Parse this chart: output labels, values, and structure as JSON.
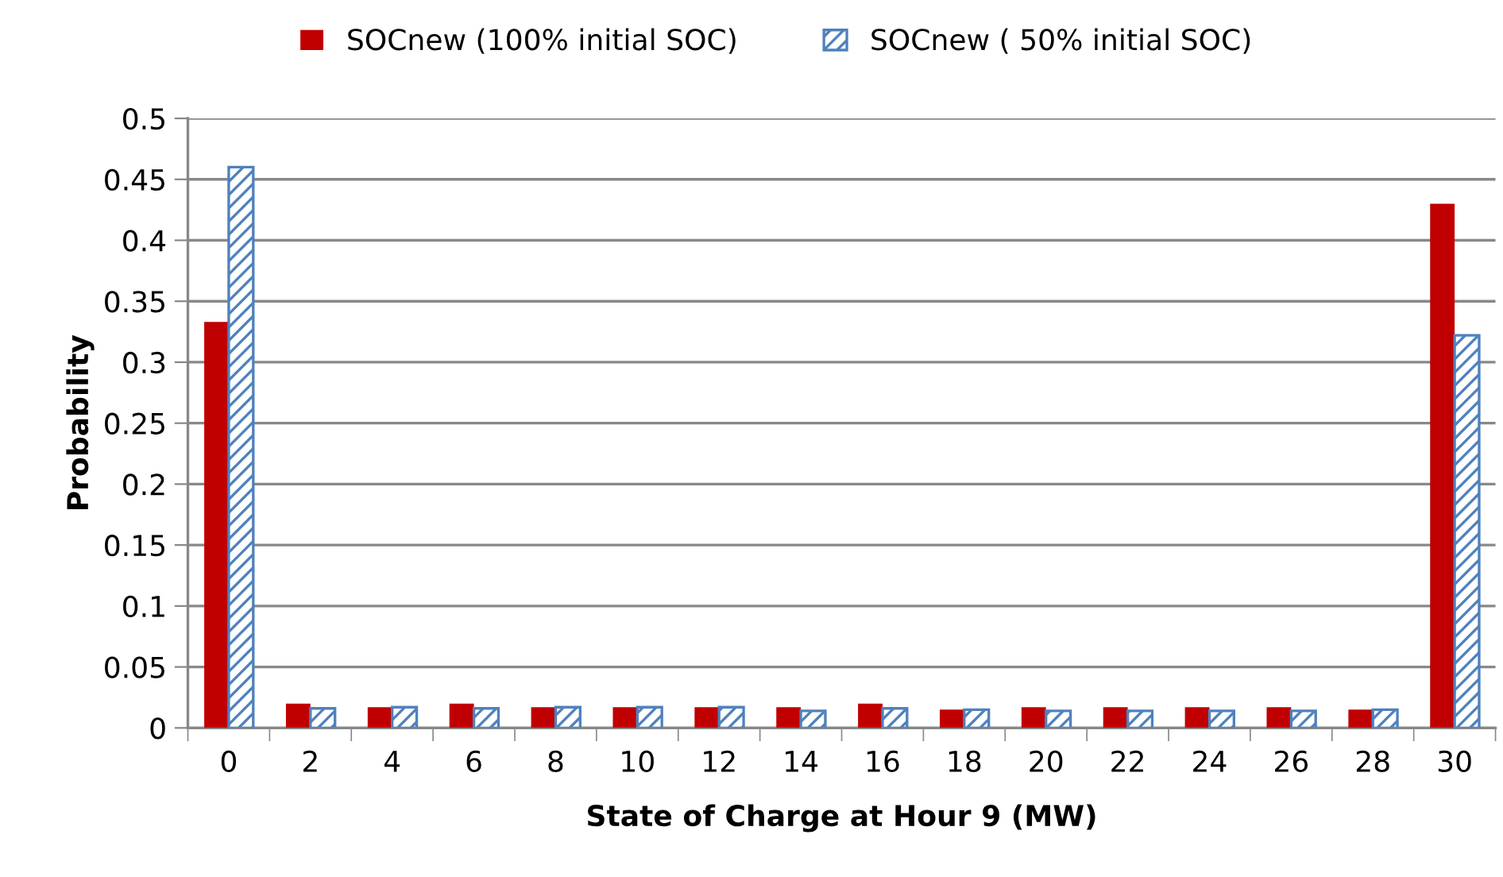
{
  "chart_data": {
    "type": "bar",
    "xlabel": "State of Charge at Hour 9 (MW)",
    "ylabel": "Probability",
    "categories": [
      "0",
      "2",
      "4",
      "6",
      "8",
      "10",
      "12",
      "14",
      "16",
      "18",
      "20",
      "22",
      "24",
      "26",
      "28",
      "30"
    ],
    "series": [
      {
        "name": "SOCnew (100% initial SOC)",
        "color": "#c00000",
        "values": [
          0.333,
          0.02,
          0.017,
          0.02,
          0.017,
          0.017,
          0.017,
          0.017,
          0.02,
          0.015,
          0.017,
          0.017,
          0.017,
          0.017,
          0.015,
          0.43
        ]
      },
      {
        "name": "SOCnew ( 50% initial SOC)",
        "color": "#4f81bd",
        "values": [
          0.46,
          0.016,
          0.017,
          0.016,
          0.017,
          0.017,
          0.017,
          0.014,
          0.016,
          0.015,
          0.014,
          0.014,
          0.014,
          0.014,
          0.015,
          0.322
        ]
      }
    ],
    "ylim": [
      0,
      0.5
    ],
    "yticks": [
      0,
      0.05,
      0.1,
      0.15,
      0.2,
      0.25,
      0.3,
      0.35,
      0.4,
      0.45,
      0.5
    ],
    "grid": "y",
    "legend": "top"
  }
}
